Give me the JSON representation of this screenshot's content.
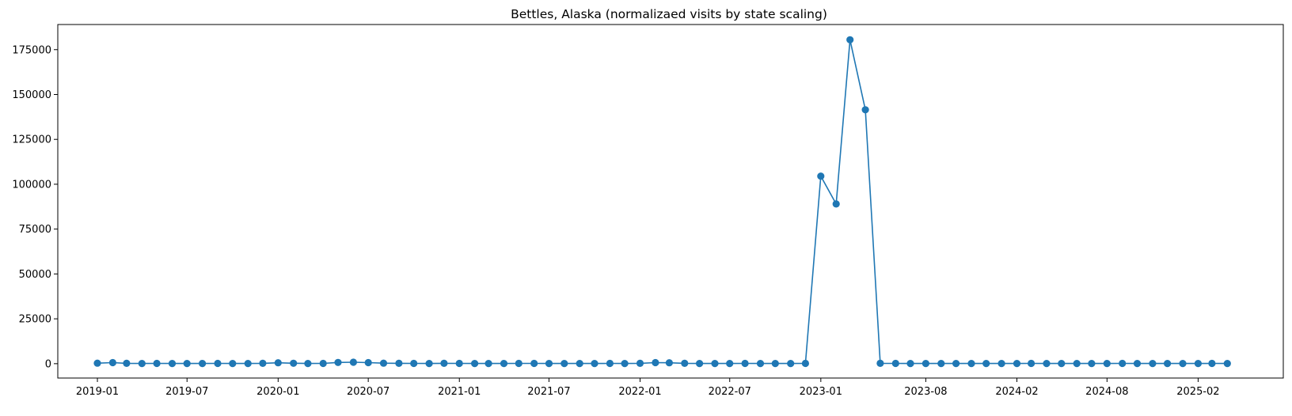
{
  "chart_data": {
    "type": "line",
    "title": "Bettles, Alaska (normalizaed visits by state scaling)",
    "xlabel": "",
    "ylabel": "",
    "grid": false,
    "color": "#1f77b4",
    "marker": "circle",
    "x_tick_labels": [
      "2019-01",
      "2019-07",
      "2020-01",
      "2020-07",
      "2021-01",
      "2021-07",
      "2022-01",
      "2022-07",
      "2023-01",
      "2023-08",
      "2024-02",
      "2024-08",
      "2025-02"
    ],
    "y_ticks": [
      0,
      25000,
      50000,
      75000,
      100000,
      125000,
      150000,
      175000
    ],
    "ylim": [
      -8000,
      189000
    ],
    "xlim": [
      "2018-10-13",
      "2025-07-23"
    ],
    "series": [
      {
        "x": [
          "2019-01-01",
          "2019-02-01",
          "2019-03-01",
          "2019-04-01",
          "2019-05-01",
          "2019-06-01",
          "2019-07-01",
          "2019-08-01",
          "2019-09-01",
          "2019-10-01",
          "2019-11-01",
          "2019-12-01",
          "2020-01-01",
          "2020-02-01",
          "2020-03-01",
          "2020-04-01",
          "2020-05-01",
          "2020-06-01",
          "2020-07-01",
          "2020-08-01",
          "2020-09-01",
          "2020-10-01",
          "2020-11-01",
          "2020-12-01",
          "2021-01-01",
          "2021-02-01",
          "2021-03-01",
          "2021-04-01",
          "2021-05-01",
          "2021-06-01",
          "2021-07-01",
          "2021-08-01",
          "2021-09-01",
          "2021-10-01",
          "2021-11-01",
          "2021-12-01",
          "2022-01-01",
          "2022-02-01",
          "2022-03-01",
          "2022-04-01",
          "2022-05-01",
          "2022-06-01",
          "2022-07-01",
          "2022-08-01",
          "2022-09-01",
          "2022-10-01",
          "2022-11-01",
          "2022-12-01",
          "2023-01-01",
          "2023-02-01",
          "2023-03-01",
          "2023-04-01",
          "2023-05-01",
          "2023-06-01",
          "2023-07-01",
          "2023-08-01",
          "2023-09-01",
          "2023-10-01",
          "2023-11-01",
          "2023-12-01",
          "2024-01-01",
          "2024-02-01",
          "2024-03-01",
          "2024-04-01",
          "2024-05-01",
          "2024-06-01",
          "2024-07-01",
          "2024-08-01",
          "2024-09-01",
          "2024-10-01",
          "2024-11-01",
          "2024-12-01",
          "2025-01-01",
          "2025-02-01",
          "2025-03-01",
          "2025-04-01"
        ],
        "y": [
          300,
          600,
          200,
          100,
          150,
          100,
          120,
          100,
          150,
          120,
          100,
          180,
          500,
          250,
          100,
          150,
          700,
          800,
          600,
          300,
          200,
          150,
          120,
          200,
          150,
          100,
          120,
          100,
          150,
          150,
          120,
          100,
          100,
          120,
          150,
          100,
          200,
          600,
          500,
          200,
          120,
          100,
          120,
          150,
          100,
          120,
          100,
          150,
          104500,
          89000,
          180500,
          141500,
          200,
          150,
          120,
          100,
          120,
          100,
          100,
          120,
          100,
          120,
          150,
          100,
          120,
          100,
          100,
          120,
          150,
          100,
          120,
          100,
          120,
          100,
          150,
          120
        ]
      }
    ]
  }
}
